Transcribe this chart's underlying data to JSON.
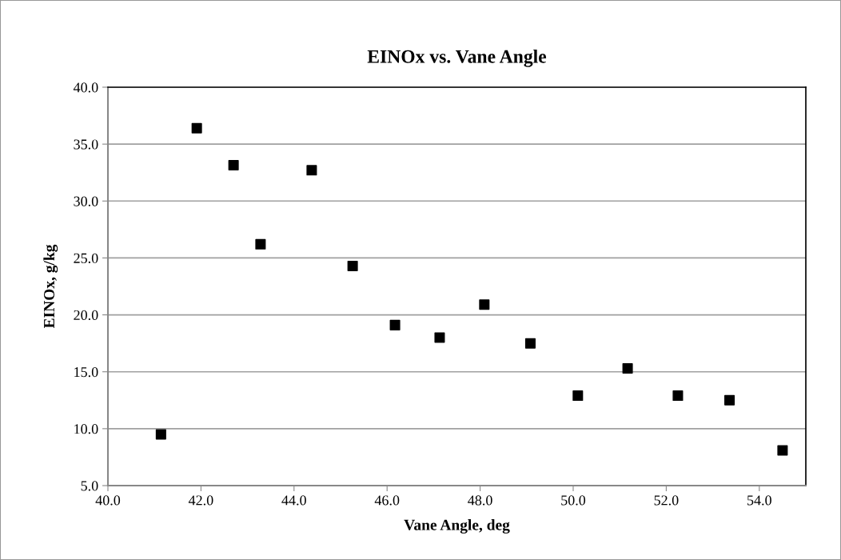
{
  "chart_data": {
    "type": "scatter",
    "title": "EINOx vs. Vane Angle",
    "xlabel": "Vane Angle, deg",
    "ylabel": "EINOx, g/kg",
    "x": [
      41.14,
      41.91,
      42.7,
      43.28,
      44.38,
      45.26,
      46.17,
      47.13,
      48.09,
      49.08,
      50.1,
      51.17,
      52.25,
      53.36,
      54.5
    ],
    "values": [
      9.5,
      36.4,
      33.15,
      26.2,
      32.7,
      24.3,
      19.1,
      18.0,
      20.9,
      17.5,
      12.9,
      15.3,
      12.9,
      12.5,
      8.1
    ],
    "color": "#000000",
    "marker": "square",
    "grid": "y",
    "xlim": [
      40,
      55
    ],
    "xticks": [
      {
        "value": 40,
        "label": "40.0"
      },
      {
        "value": 42,
        "label": "42.0"
      },
      {
        "value": 44,
        "label": "44.0"
      },
      {
        "value": 46,
        "label": "46.0"
      },
      {
        "value": 48,
        "label": "48.0"
      },
      {
        "value": 50,
        "label": "50.0"
      },
      {
        "value": 52,
        "label": "52.0"
      },
      {
        "value": 54,
        "label": "54.0"
      }
    ],
    "ylim": [
      5,
      40
    ],
    "yticks": [
      {
        "value": 5,
        "label": "5.0"
      },
      {
        "value": 10,
        "label": "10.0"
      },
      {
        "value": 15,
        "label": "15.0"
      },
      {
        "value": 20,
        "label": "20.0"
      },
      {
        "value": 25,
        "label": "25.0"
      },
      {
        "value": 30,
        "label": "30.0"
      },
      {
        "value": 35,
        "label": "35.0"
      },
      {
        "value": 40,
        "label": "40.0"
      }
    ]
  }
}
